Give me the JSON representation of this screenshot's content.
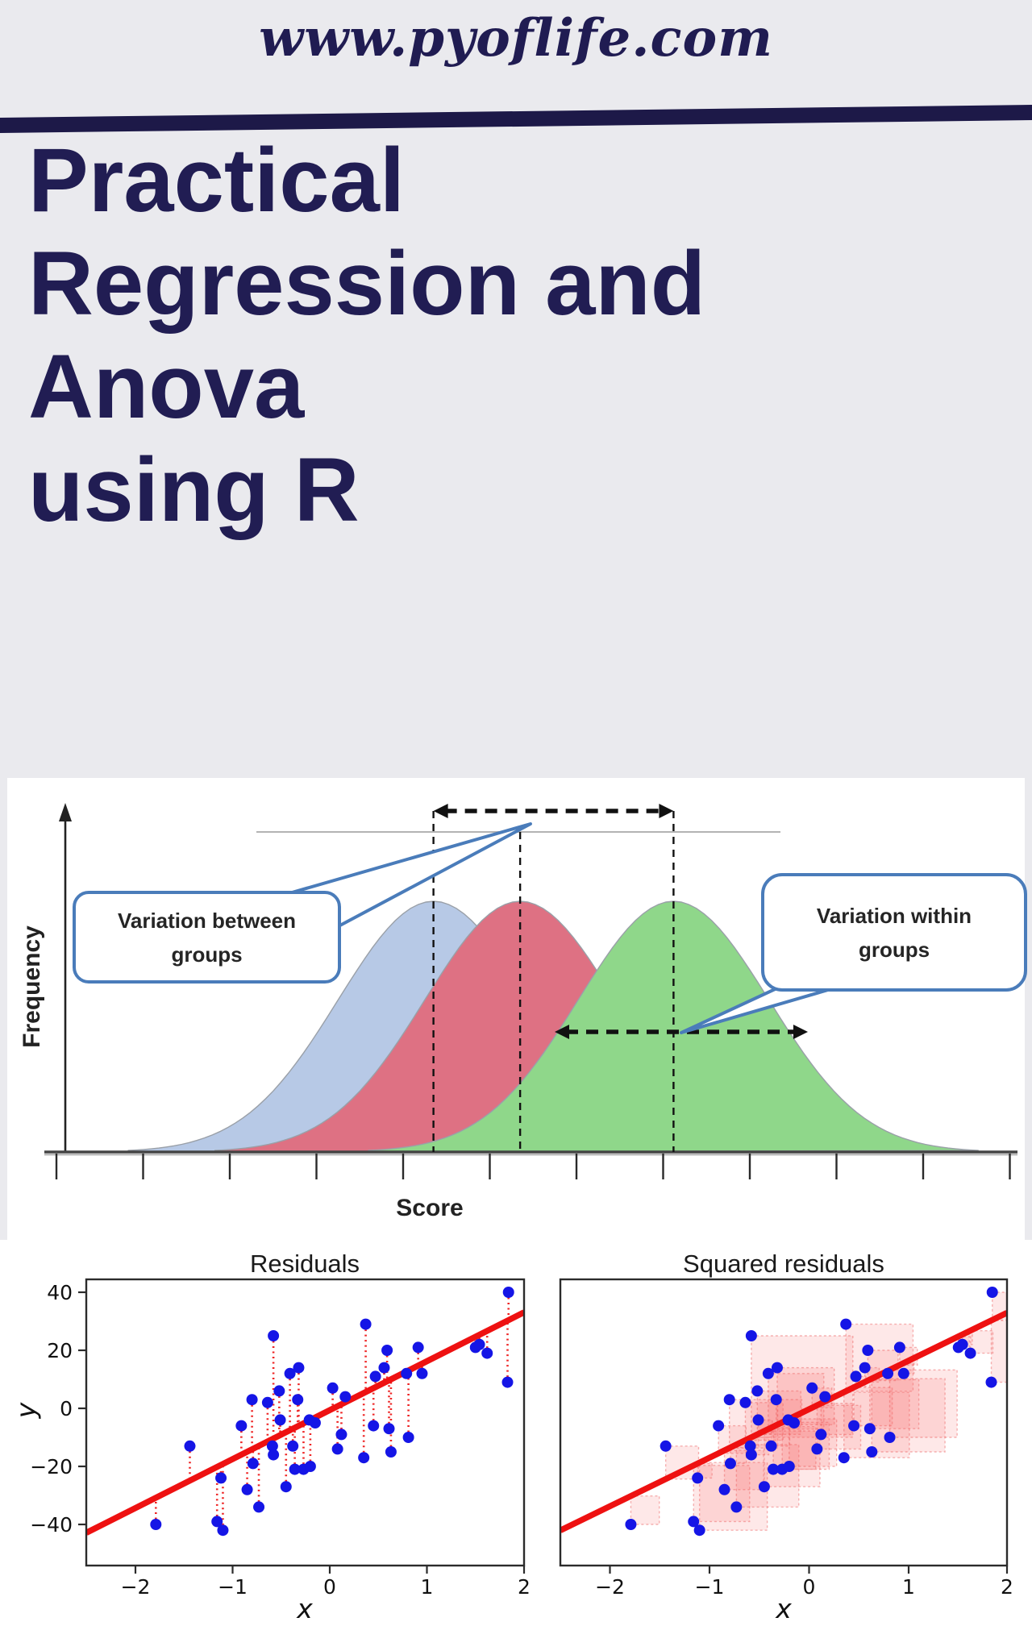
{
  "header": {
    "site_url": "www.pyoflife.com"
  },
  "colors": {
    "background_gray": "#eaeaee",
    "navy": "#211d53",
    "divider_navy": "#1d1948",
    "callout_border_blue": "#4a7cba",
    "group1_fill": "#b7c9e6",
    "group2_fill": "#de7183",
    "group3_fill": "#8fd78a",
    "curve_outline": "#9aa0a8",
    "scatter_point_blue": "#1515e6",
    "regression_red": "#ee1111",
    "residual_dot_red": "#ee2222",
    "square_fill": "rgba(250,110,110,0.16)",
    "square_stroke": "rgba(235,90,90,0.45)",
    "axis_dark": "#444444",
    "text_dark": "#222222"
  },
  "title": {
    "lines": [
      "Practical",
      "Regression and",
      "Anova",
      "using R"
    ]
  },
  "anova_figure": {
    "ylabel": "Frequency",
    "xlabel": "Score",
    "callouts": [
      {
        "line1": "Variation between",
        "line2": "groups"
      },
      {
        "line1": "Variation within",
        "line2": "groups"
      }
    ]
  },
  "chart_data": [
    {
      "type": "area",
      "title": "",
      "xlabel": "Score",
      "ylabel": "Frequency",
      "note": "Three overlapping normal distributions on an unlabeled score axis with 12 tick marks; dashed vertical lines mark each group mean; dashed double-headed arrows mark variation between groups (top) and within groups (bottom).",
      "legend_position": "none",
      "grid": false,
      "series": [
        {
          "name": "group 1",
          "color": "#b7c9e6",
          "mean_tick": 4.35,
          "sd_ticks": 1.1
        },
        {
          "name": "group 2",
          "color": "#de7183",
          "mean_tick": 5.35,
          "sd_ticks": 1.1
        },
        {
          "name": "group 3",
          "color": "#8fd78a",
          "mean_tick": 7.12,
          "sd_ticks": 1.1
        }
      ],
      "annotations": [
        "Variation between groups",
        "Variation within groups"
      ]
    },
    {
      "type": "scatter",
      "title": "Residuals",
      "xlabel": "x",
      "ylabel": "y",
      "xlim": [
        -2.55,
        2.0
      ],
      "ylim": [
        -54,
        44
      ],
      "xticks": [
        "−2",
        "−1",
        "0",
        "1",
        "2"
      ],
      "xtick_values": [
        -2,
        -1,
        0,
        1,
        2
      ],
      "yticks": [
        "40",
        "20",
        "0",
        "−20",
        "−40"
      ],
      "ytick_values": [
        40,
        20,
        0,
        -20,
        -40
      ],
      "line": {
        "slope": 16.7,
        "intercept": -0.3,
        "color": "#ee1111"
      },
      "residual_lines": true,
      "points": [
        [
          -1.79,
          -40
        ],
        [
          -1.44,
          -13
        ],
        [
          -1.12,
          -24
        ],
        [
          -1.16,
          -39
        ],
        [
          -1.1,
          -42
        ],
        [
          -0.91,
          -6
        ],
        [
          -0.85,
          -28
        ],
        [
          -0.8,
          3
        ],
        [
          -0.79,
          -19
        ],
        [
          -0.73,
          -34
        ],
        [
          -0.64,
          2
        ],
        [
          -0.58,
          25
        ],
        [
          -0.59,
          -13
        ],
        [
          -0.58,
          -16
        ],
        [
          -0.52,
          6
        ],
        [
          -0.51,
          -4
        ],
        [
          -0.45,
          -27
        ],
        [
          -0.41,
          12
        ],
        [
          -0.38,
          -13
        ],
        [
          -0.36,
          -21
        ],
        [
          -0.32,
          14
        ],
        [
          -0.33,
          3
        ],
        [
          -0.27,
          -21
        ],
        [
          -0.2,
          -20
        ],
        [
          -0.21,
          -4
        ],
        [
          -0.15,
          -5
        ],
        [
          0.03,
          7
        ],
        [
          0.08,
          -14
        ],
        [
          0.12,
          -9
        ],
        [
          0.16,
          4
        ],
        [
          0.37,
          29
        ],
        [
          0.35,
          -17
        ],
        [
          0.45,
          -6
        ],
        [
          0.47,
          11
        ],
        [
          0.56,
          14
        ],
        [
          0.59,
          20
        ],
        [
          0.61,
          -7
        ],
        [
          0.63,
          -15
        ],
        [
          0.79,
          12
        ],
        [
          0.81,
          -10
        ],
        [
          0.91,
          21
        ],
        [
          0.95,
          12
        ],
        [
          1.5,
          21
        ],
        [
          1.54,
          22
        ],
        [
          1.62,
          19
        ],
        [
          1.84,
          40
        ],
        [
          1.83,
          9
        ]
      ]
    },
    {
      "type": "scatter",
      "title": "Squared residuals",
      "xlabel": "x",
      "ylabel": "",
      "xlim": [
        -2.5,
        1.99
      ],
      "ylim": [
        -54,
        44
      ],
      "xticks": [
        "−2",
        "−1",
        "0",
        "1",
        "2"
      ],
      "xtick_values": [
        -2,
        -1,
        0,
        1,
        2
      ],
      "yticks": [],
      "line": {
        "slope": 16.7,
        "intercept": -0.3,
        "color": "#ee1111"
      },
      "squared_residuals": true,
      "points": [
        [
          -1.79,
          -40
        ],
        [
          -1.44,
          -13
        ],
        [
          -1.12,
          -24
        ],
        [
          -1.16,
          -39
        ],
        [
          -1.1,
          -42
        ],
        [
          -0.91,
          -6
        ],
        [
          -0.85,
          -28
        ],
        [
          -0.8,
          3
        ],
        [
          -0.79,
          -19
        ],
        [
          -0.73,
          -34
        ],
        [
          -0.64,
          2
        ],
        [
          -0.58,
          25
        ],
        [
          -0.59,
          -13
        ],
        [
          -0.58,
          -16
        ],
        [
          -0.52,
          6
        ],
        [
          -0.51,
          -4
        ],
        [
          -0.45,
          -27
        ],
        [
          -0.41,
          12
        ],
        [
          -0.38,
          -13
        ],
        [
          -0.36,
          -21
        ],
        [
          -0.32,
          14
        ],
        [
          -0.33,
          3
        ],
        [
          -0.27,
          -21
        ],
        [
          -0.2,
          -20
        ],
        [
          -0.21,
          -4
        ],
        [
          -0.15,
          -5
        ],
        [
          0.03,
          7
        ],
        [
          0.08,
          -14
        ],
        [
          0.12,
          -9
        ],
        [
          0.16,
          4
        ],
        [
          0.37,
          29
        ],
        [
          0.35,
          -17
        ],
        [
          0.45,
          -6
        ],
        [
          0.47,
          11
        ],
        [
          0.56,
          14
        ],
        [
          0.59,
          20
        ],
        [
          0.61,
          -7
        ],
        [
          0.63,
          -15
        ],
        [
          0.79,
          12
        ],
        [
          0.81,
          -10
        ],
        [
          0.91,
          21
        ],
        [
          0.95,
          12
        ],
        [
          1.5,
          21
        ],
        [
          1.54,
          22
        ],
        [
          1.62,
          19
        ],
        [
          1.84,
          40
        ],
        [
          1.83,
          9
        ]
      ]
    }
  ]
}
